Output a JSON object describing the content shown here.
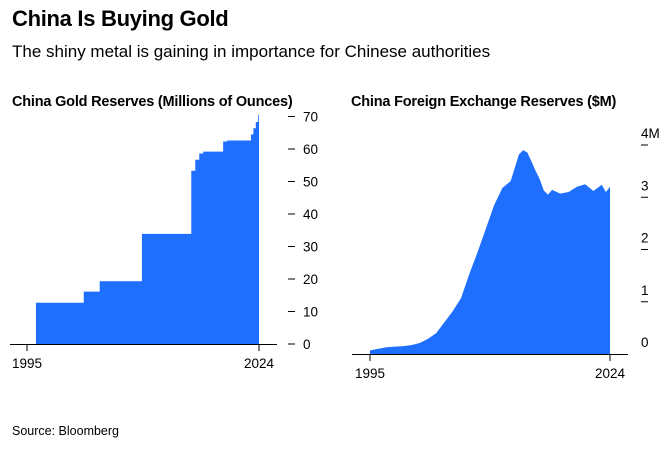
{
  "title": "China Is Buying Gold",
  "subtitle": "The shiny metal is gaining in importance for Chinese authorities",
  "source": "Source: Bloomberg",
  "colors": {
    "bar": "#1f6fff",
    "axis": "#000000"
  },
  "chart_data": [
    {
      "type": "area",
      "title": "China Gold Reserves (Millions of Ounces)",
      "xlabel": "",
      "ylabel": "Millions of Ounces",
      "x_tick_labels": [
        "1995",
        "2024"
      ],
      "xlim": [
        1995,
        2024
      ],
      "ylim": [
        0,
        72
      ],
      "y_ticks": [
        0,
        10,
        20,
        30,
        40,
        50,
        60,
        70
      ],
      "y_tick_labels": [
        "0",
        "10",
        "20",
        "30",
        "40",
        "50",
        "60",
        "70"
      ],
      "x": [
        1996,
        2001.5,
        2002,
        2002.2,
        2004,
        2009,
        2009.3,
        2015,
        2015.5,
        2016,
        2016.5,
        2017,
        2019,
        2019.5,
        2020,
        2022.8,
        2023,
        2023.3,
        2023.6,
        2023.9,
        2024
      ],
      "values": [
        12.7,
        12.7,
        16.1,
        16.1,
        19.3,
        19.3,
        33.9,
        33.9,
        53.3,
        56.7,
        58.6,
        59.2,
        59.2,
        62.3,
        62.6,
        62.6,
        64.5,
        66.4,
        68.3,
        70.5,
        71.5
      ]
    },
    {
      "type": "area",
      "title": "China Foreign Exchange Reserves ($M)",
      "xlabel": "",
      "ylabel": "$M",
      "x_tick_labels": [
        "1995",
        "2024"
      ],
      "xlim": [
        1995,
        2024
      ],
      "ylim": [
        0,
        4
      ],
      "y_ticks": [
        0,
        1,
        2,
        3,
        4
      ],
      "y_tick_labels": [
        "0",
        "1",
        "2",
        "3",
        "4M"
      ],
      "x": [
        1995,
        1996,
        1997,
        1998,
        1999,
        2000,
        2001,
        2002,
        2003,
        2004,
        2005,
        2006,
        2007,
        2008,
        2009,
        2010,
        2011,
        2012,
        2013,
        2013.5,
        2014,
        2014.5,
        2015,
        2015.5,
        2016,
        2016.5,
        2017,
        2018,
        2019,
        2020,
        2021,
        2022,
        2023,
        2023.5,
        2024
      ],
      "values": [
        0.07,
        0.1,
        0.13,
        0.14,
        0.15,
        0.17,
        0.21,
        0.29,
        0.4,
        0.61,
        0.82,
        1.07,
        1.53,
        1.95,
        2.4,
        2.85,
        3.18,
        3.31,
        3.82,
        3.9,
        3.86,
        3.69,
        3.51,
        3.35,
        3.13,
        3.05,
        3.14,
        3.07,
        3.1,
        3.2,
        3.25,
        3.12,
        3.24,
        3.1,
        3.2
      ]
    }
  ]
}
